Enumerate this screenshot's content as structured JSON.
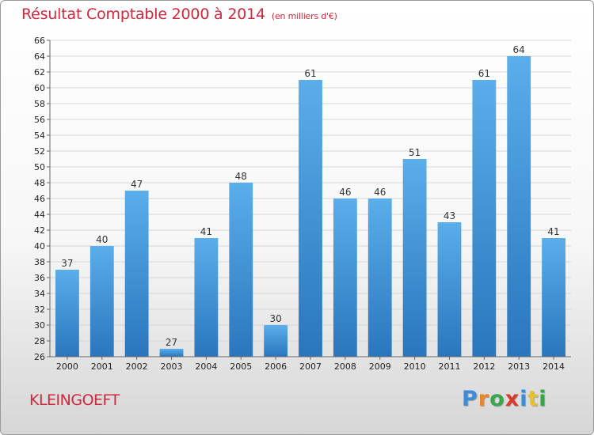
{
  "chart_data": {
    "type": "bar",
    "title": "Résultat Comptable 2000 à 2014",
    "subtitle": "(en milliers d'€)",
    "categories": [
      "2000",
      "2001",
      "2002",
      "2003",
      "2004",
      "2005",
      "2006",
      "2007",
      "2008",
      "2009",
      "2010",
      "2011",
      "2012",
      "2013",
      "2014"
    ],
    "values": [
      37,
      40,
      47,
      27,
      41,
      48,
      30,
      61,
      46,
      46,
      51,
      43,
      61,
      64,
      41
    ],
    "ylim": [
      26,
      66
    ],
    "ytick_step": 2,
    "grid": true,
    "bar_color": "#4a9ee0"
  },
  "footer": {
    "commune": "KLEINGOEFT",
    "logo_letters": [
      "P",
      "r",
      "o",
      "x",
      "i",
      "t",
      "i"
    ],
    "logo_colors": [
      "#3e8bd6",
      "#e8872a",
      "#3aa64a",
      "#d93a2b",
      "#3e8bd6",
      "#e8c12a",
      "#3aa64a"
    ]
  }
}
